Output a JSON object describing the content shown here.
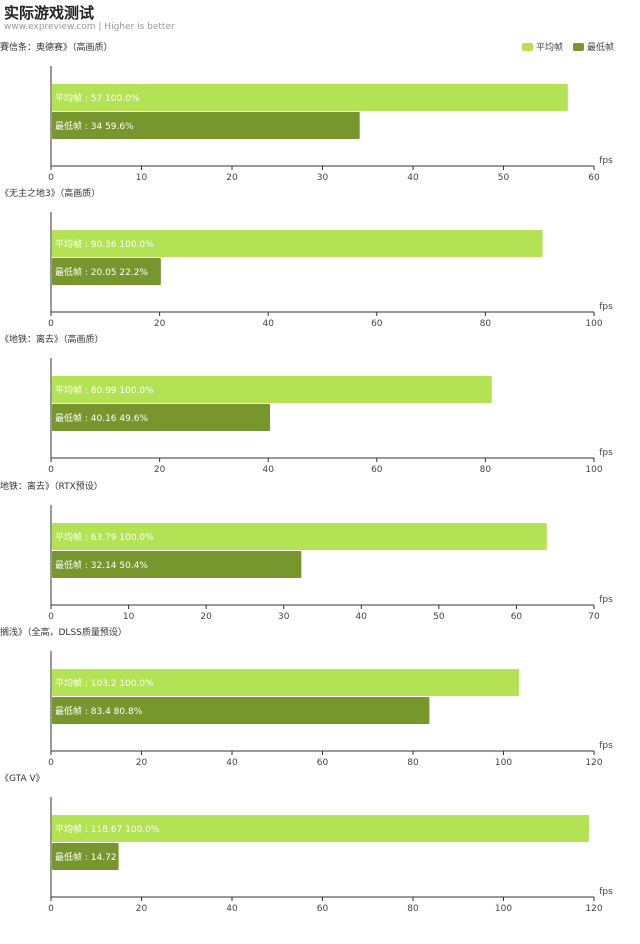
{
  "header": {
    "title": "实际游戏测试",
    "subtitle": "www.expreview.com | Higher is better"
  },
  "legend": [
    {
      "label": "平均帧",
      "color": "#b3e355"
    },
    {
      "label": "最低帧",
      "color": "#77962d"
    }
  ],
  "unit": "fps",
  "chart_data": [
    {
      "type": "bar",
      "title": "賽信条：奥德赛》（高画质）",
      "xlim": [
        0,
        60
      ],
      "ticks": [
        0,
        10,
        20,
        30,
        40,
        50,
        60
      ],
      "series": [
        {
          "name": "平均帧",
          "value": 57,
          "value_label": "57",
          "pct": "100.0%"
        },
        {
          "name": "最低帧",
          "value": 34,
          "value_label": "34",
          "pct": "59.6%"
        }
      ]
    },
    {
      "type": "bar",
      "title": "《无主之地3》（高画质）",
      "xlim": [
        0,
        100
      ],
      "ticks": [
        0,
        20,
        40,
        60,
        80,
        100
      ],
      "series": [
        {
          "name": "平均帧",
          "value": 90.36,
          "value_label": "90.36",
          "pct": "100.0%"
        },
        {
          "name": "最低帧",
          "value": 20.05,
          "value_label": "20.05",
          "pct": "22.2%"
        }
      ]
    },
    {
      "type": "bar",
      "title": "《地铁：离去》（高画质）",
      "xlim": [
        0,
        100
      ],
      "ticks": [
        0,
        20,
        40,
        60,
        80,
        100
      ],
      "series": [
        {
          "name": "平均帧",
          "value": 80.99,
          "value_label": "80.99",
          "pct": "100.0%"
        },
        {
          "name": "最低帧",
          "value": 40.16,
          "value_label": "40.16",
          "pct": "49.6%"
        }
      ]
    },
    {
      "type": "bar",
      "title": "地铁：离去》（RTX预设）",
      "xlim": [
        0,
        70
      ],
      "ticks": [
        0,
        10,
        20,
        30,
        40,
        50,
        60,
        70
      ],
      "series": [
        {
          "name": "平均帧",
          "value": 63.79,
          "value_label": "63.79",
          "pct": "100.0%"
        },
        {
          "name": "最低帧",
          "value": 32.14,
          "value_label": "32.14",
          "pct": "50.4%"
        }
      ]
    },
    {
      "type": "bar",
      "title": "搁浅》（全高，DLSS质量预设）",
      "xlim": [
        0,
        120
      ],
      "ticks": [
        0,
        20,
        40,
        60,
        80,
        100,
        120
      ],
      "series": [
        {
          "name": "平均帧",
          "value": 103.2,
          "value_label": "103.2",
          "pct": "100.0%"
        },
        {
          "name": "最低帧",
          "value": 83.4,
          "value_label": "83.4",
          "pct": "80.8%"
        }
      ]
    },
    {
      "type": "bar",
      "title": "《GTA V》",
      "xlim": [
        0,
        120
      ],
      "ticks": [
        0,
        20,
        40,
        60,
        80,
        100,
        120
      ],
      "series": [
        {
          "name": "平均帧",
          "value": 118.67,
          "value_label": "118.67",
          "pct": "100.0%"
        },
        {
          "name": "最低帧",
          "value": 14.72,
          "value_label": "14.72",
          "pct": ""
        }
      ]
    }
  ]
}
